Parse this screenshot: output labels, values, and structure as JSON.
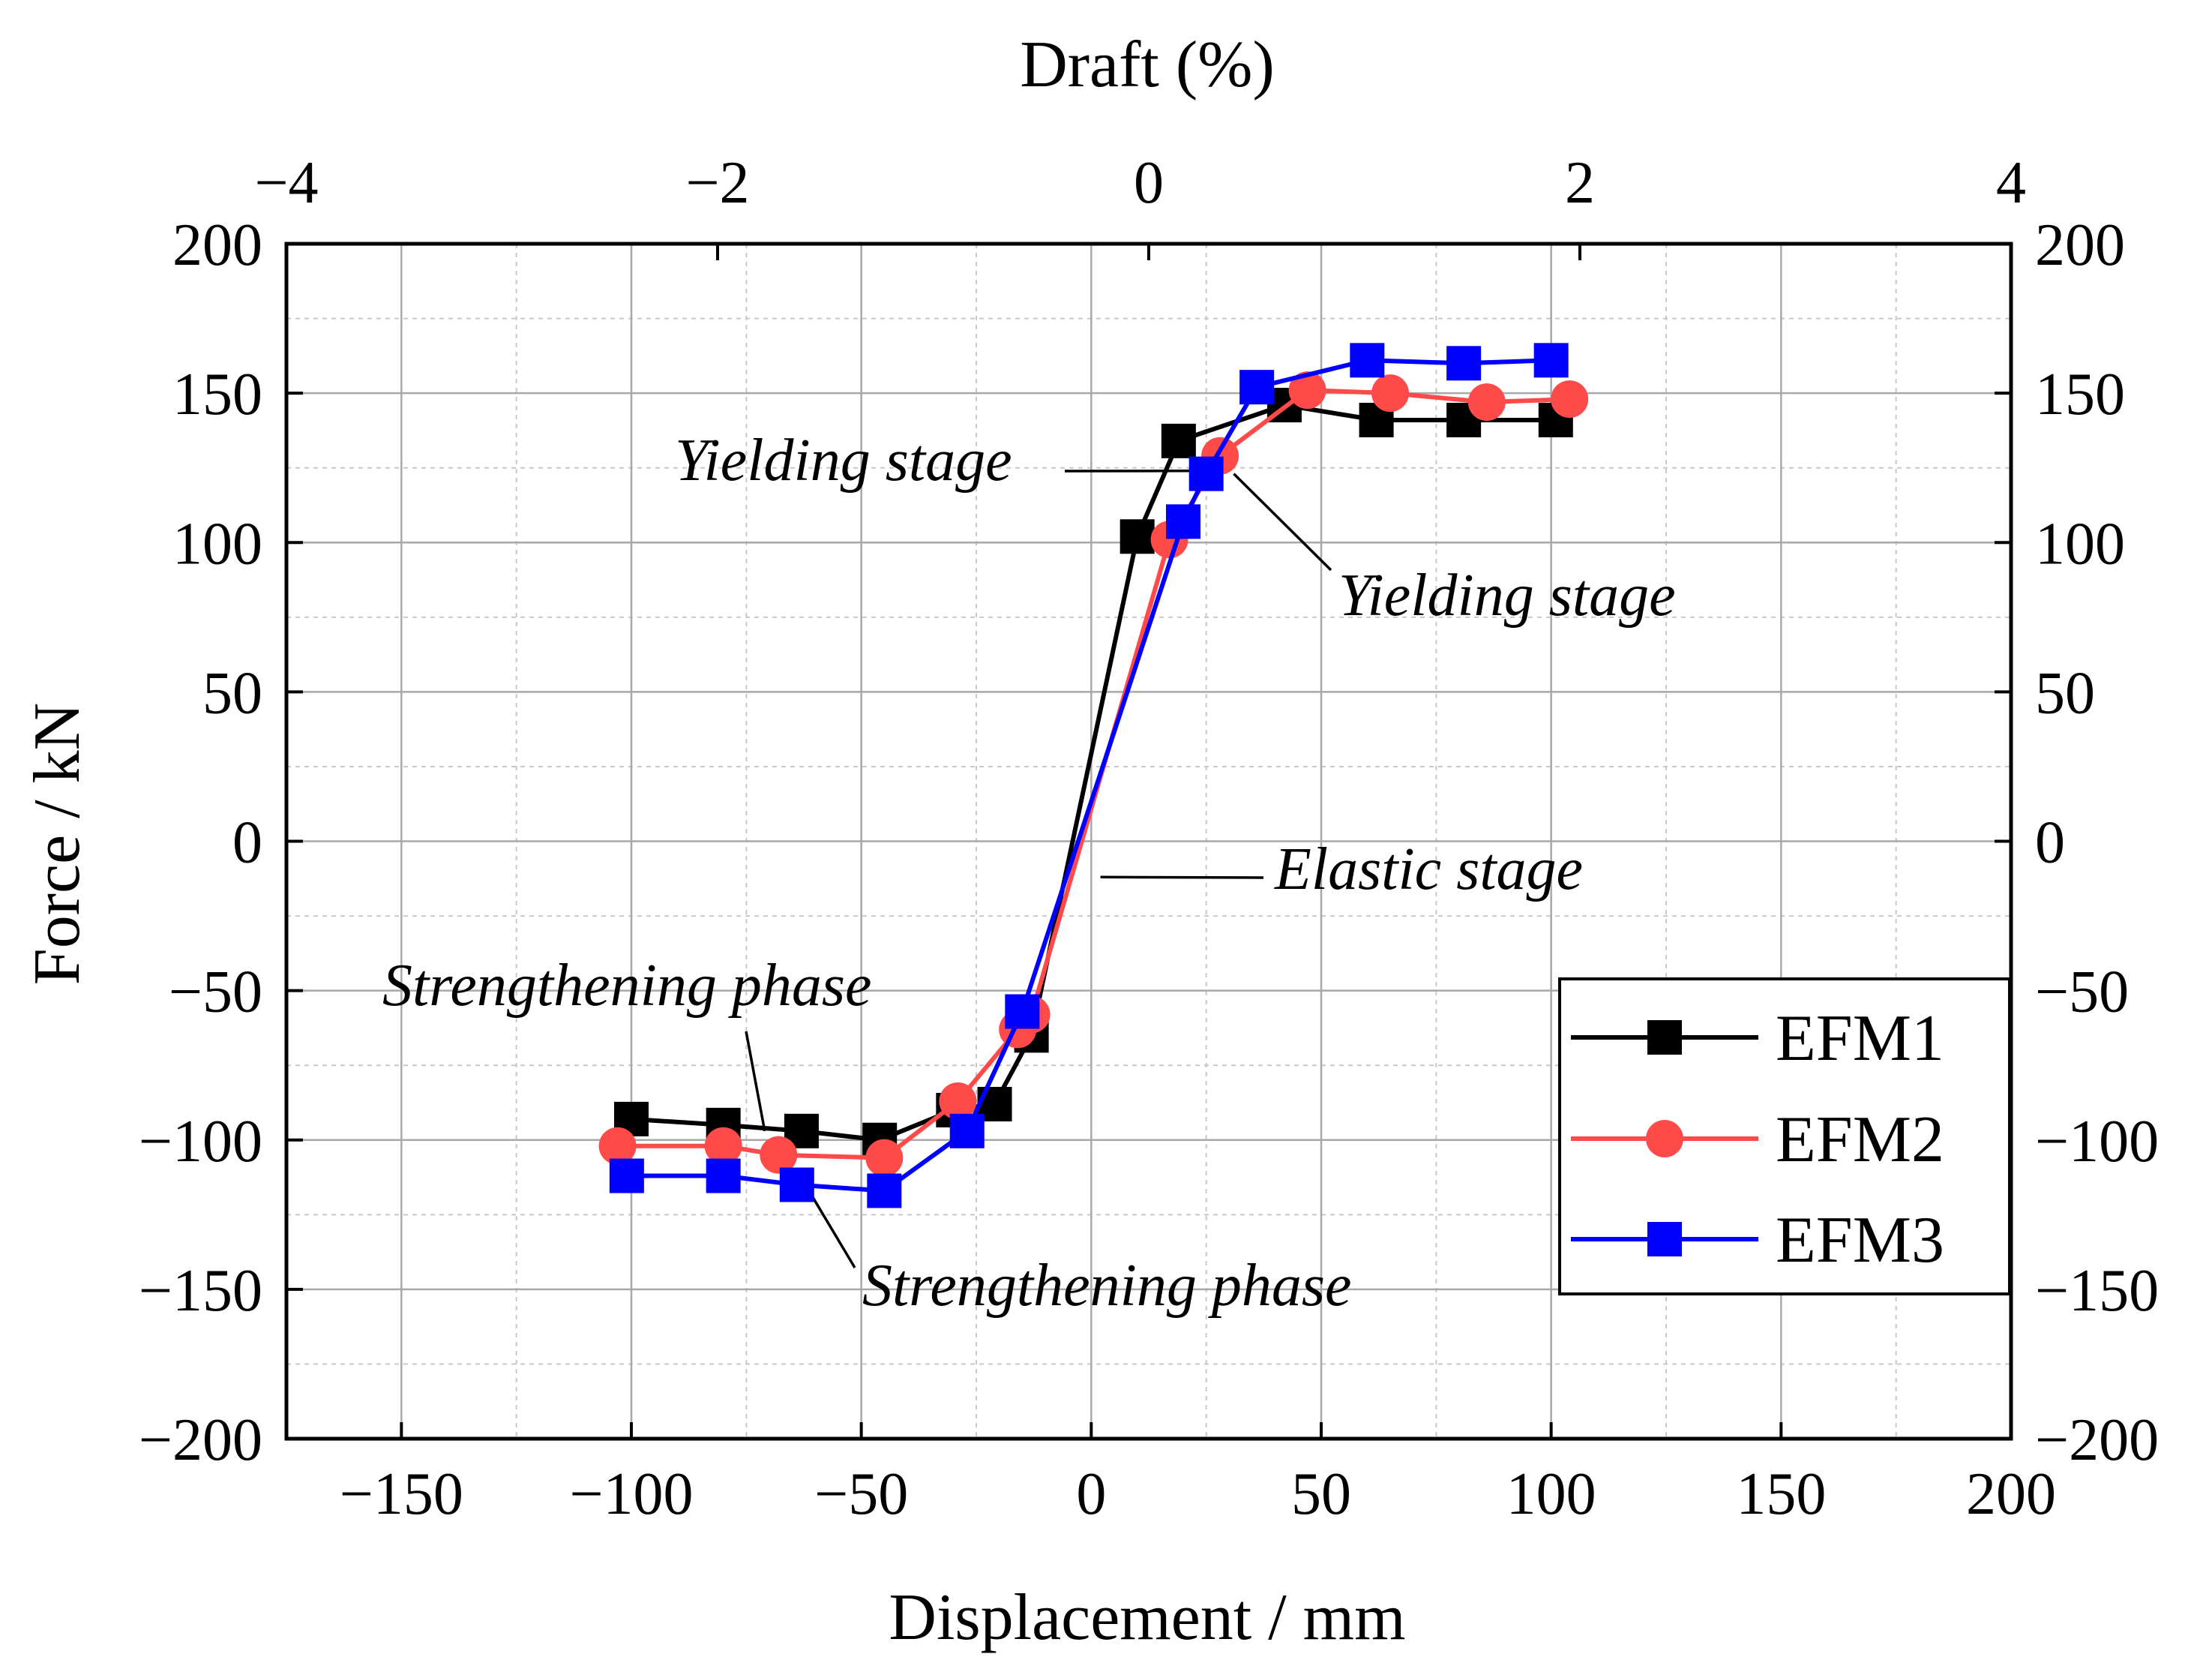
{
  "chart_data": {
    "type": "line",
    "xlabel": "Displacement / mm",
    "ylabel": "Force / kN",
    "x2label": "Draft (%)",
    "xlim": [
      -175,
      200
    ],
    "ylim": [
      -200,
      200
    ],
    "x2lim": [
      -4,
      4
    ],
    "xticks": [
      -150,
      -100,
      -50,
      0,
      50,
      100,
      150,
      200
    ],
    "xtick_labels": [
      "−150",
      "−100",
      "−50",
      "0",
      "50",
      "100",
      "150",
      "200"
    ],
    "yticks": [
      -200,
      -150,
      -100,
      -50,
      0,
      50,
      100,
      150,
      200
    ],
    "ytick_labels": [
      "−200",
      "−150",
      "−100",
      "−50",
      "0",
      "50",
      "100",
      "150",
      "200"
    ],
    "x2ticks": [
      -4,
      -2,
      0,
      2,
      4
    ],
    "x2tick_labels": [
      "−4",
      "−2",
      "0",
      "2",
      "4"
    ],
    "grid": true,
    "legend_position": "bottom-right",
    "series": [
      {
        "name": "EFM1",
        "color": "#000000",
        "marker": "square",
        "x": [
          -100,
          -80,
          -63,
          -46,
          -30,
          -21,
          -13,
          10,
          19,
          42,
          62,
          81,
          101
        ],
        "y": [
          -93,
          -95,
          -97,
          -100,
          -90,
          -88,
          -65,
          102,
          134,
          146,
          141,
          141,
          141
        ]
      },
      {
        "name": "EFM2",
        "color": "#ff4a4a",
        "marker": "circle",
        "x": [
          -103,
          -80,
          -68,
          -45,
          -29,
          -16,
          -13,
          17,
          28,
          47,
          65,
          86,
          104
        ],
        "y": [
          -102,
          -102,
          -105,
          -106,
          -87,
          -63,
          -58,
          101,
          129,
          151,
          150,
          147,
          148
        ]
      },
      {
        "name": "EFM3",
        "color": "#0000ff",
        "marker": "square",
        "x": [
          -101,
          -80,
          -64,
          -45,
          -27,
          -15,
          20,
          25,
          36,
          60,
          81,
          100
        ],
        "y": [
          -112,
          -112,
          -115,
          -117,
          -97,
          -57,
          107,
          123,
          152,
          161,
          160,
          161
        ]
      }
    ],
    "annotations": [
      {
        "text": "Yielding stage",
        "pointer": [
          25,
          124
        ]
      },
      {
        "text": "Yielding stage",
        "pointer": [
          31,
          123
        ]
      },
      {
        "text": "Elastic stage",
        "pointer": [
          2,
          -12
        ]
      },
      {
        "text": "Strengthening phase",
        "pointer": [
          -71,
          -97
        ]
      },
      {
        "text": "Strengthening phase",
        "pointer": [
          -61,
          -118
        ]
      }
    ]
  }
}
